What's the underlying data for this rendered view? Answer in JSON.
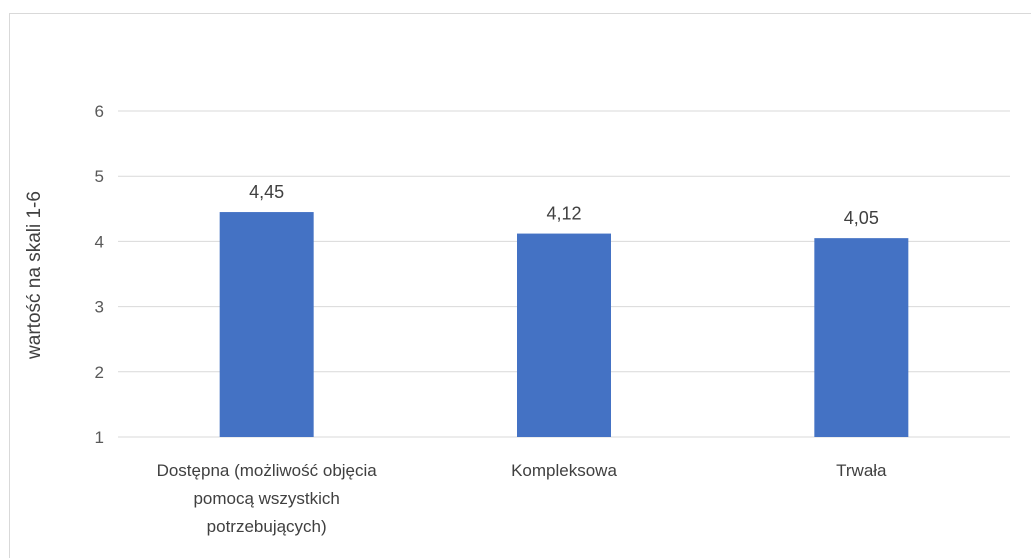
{
  "chart_title_fragment": "",
  "chart_data": {
    "type": "bar",
    "title": "",
    "xlabel": "",
    "ylabel": "wartość na skali 1-6",
    "categories": [
      [
        "Dostępna (możliwość objęcia",
        "pomocą wszystkich",
        "potrzebujących)"
      ],
      [
        "Kompleksowa"
      ],
      [
        "Trwała"
      ]
    ],
    "values": [
      4.45,
      4.12,
      4.05
    ],
    "value_labels": [
      "4,45",
      "4,12",
      "4,05"
    ],
    "ylim": [
      1,
      6
    ],
    "yticks": [
      1,
      2,
      3,
      4,
      5,
      6
    ],
    "grid": true,
    "legend": "none",
    "bar_color": "#4472c4",
    "grid_color": "#d9d9d9"
  }
}
